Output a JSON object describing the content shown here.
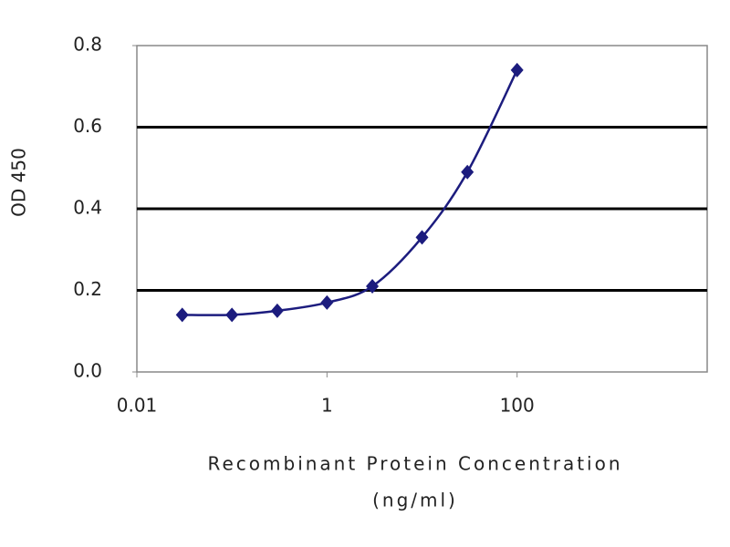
{
  "chart_data": {
    "type": "scatter",
    "ylabel": "OD 450",
    "xlabel_lines": [
      "Recombinant Protein Concentration",
      "(ng/ml)"
    ],
    "x": [
      0.03,
      0.1,
      0.3,
      1,
      3,
      10,
      30,
      100
    ],
    "series": [
      {
        "color": "#1c1c7e",
        "values": [
          0.14,
          0.14,
          0.15,
          0.17,
          0.21,
          0.33,
          0.49,
          0.74
        ]
      }
    ],
    "xscale": "log",
    "xlim": [
      0.01,
      10000
    ],
    "xticks": [
      0.01,
      1,
      100
    ],
    "ylim": [
      0,
      0.8
    ],
    "yticks": [
      {
        "value": 0,
        "label": "0.0"
      },
      0.2,
      0.4,
      0.6,
      0.8
    ],
    "grid": true
  }
}
